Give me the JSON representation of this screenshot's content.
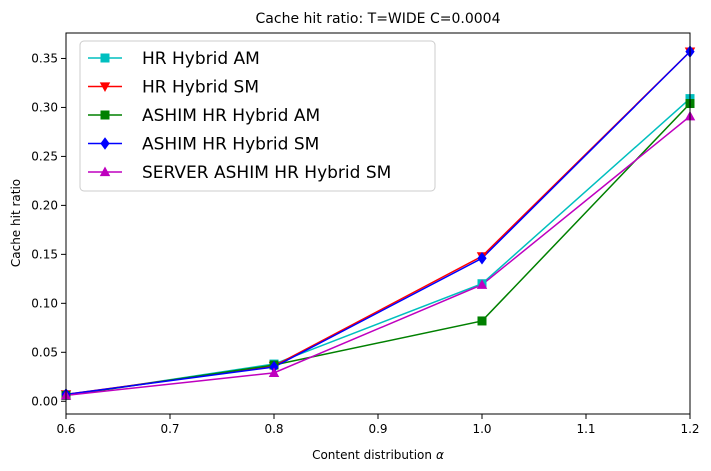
{
  "chart_data": {
    "type": "line",
    "title": "Cache hit ratio: T=WIDE C=0.0004",
    "xlabel": "Content distribution",
    "xlabel_symbol": "α",
    "ylabel": "Cache hit ratio",
    "xlim": [
      0.6,
      1.2
    ],
    "ylim": [
      -0.013,
      0.376
    ],
    "xticks": [
      0.6,
      0.7,
      0.8,
      0.9,
      1.0,
      1.1,
      1.2
    ],
    "xtick_labels": [
      "0.6",
      "0.7",
      "0.8",
      "0.9",
      "1.0",
      "1.1",
      "1.2"
    ],
    "yticks": [
      0.0,
      0.05,
      0.1,
      0.15,
      0.2,
      0.25,
      0.3,
      0.35
    ],
    "ytick_labels": [
      "0.00",
      "0.05",
      "0.10",
      "0.15",
      "0.20",
      "0.25",
      "0.30",
      "0.35"
    ],
    "grid": false,
    "legend_position": "top-left",
    "x": [
      0.6,
      0.8,
      1.0,
      1.2
    ],
    "series": [
      {
        "name": "HR Hybrid AM",
        "color": "#00bfbf",
        "marker": "square",
        "values": [
          0.006,
          0.038,
          0.12,
          0.309
        ]
      },
      {
        "name": "HR Hybrid SM",
        "color": "#ff0000",
        "marker": "triangle-down",
        "values": [
          0.007,
          0.036,
          0.148,
          0.357
        ]
      },
      {
        "name": "ASHIM HR Hybrid AM",
        "color": "#008000",
        "marker": "square",
        "values": [
          0.006,
          0.037,
          0.082,
          0.304
        ]
      },
      {
        "name": "ASHIM HR Hybrid SM",
        "color": "#0000ff",
        "marker": "diamond",
        "values": [
          0.007,
          0.035,
          0.146,
          0.357
        ]
      },
      {
        "name": "SERVER ASHIM HR Hybrid SM",
        "color": "#bf00bf",
        "marker": "triangle-up",
        "values": [
          0.006,
          0.029,
          0.119,
          0.291
        ]
      }
    ]
  }
}
